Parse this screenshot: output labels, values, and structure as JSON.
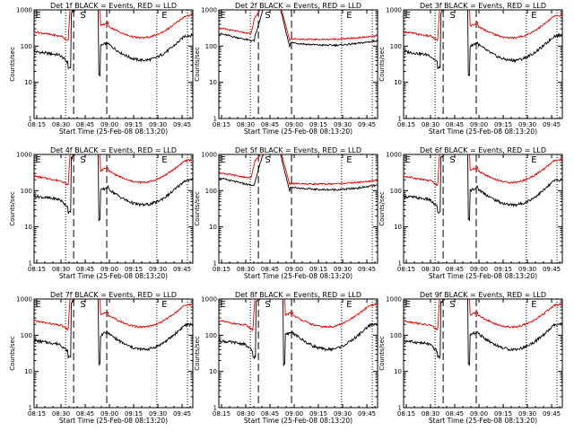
{
  "colors": {
    "events": "#000000",
    "lld": "#e00000",
    "axis": "#000000",
    "background": "#ffffff"
  },
  "chart_data": [
    {
      "type": "line",
      "title": "Det 1f BLACK = Events, RED = LLD",
      "xlabel": "Start Time (25-Feb-08 08:13:20)",
      "ylabel": "Counts/sec",
      "x_ticks": [
        "08:15",
        "08:30",
        "08:45",
        "09:00",
        "09:15",
        "09:30",
        "09:45"
      ],
      "y_ticks": [
        "1",
        "10",
        "100",
        "1000"
      ],
      "ylim": [
        1,
        1000
      ],
      "yscale": "log",
      "markers": [
        "E",
        "S",
        "E"
      ],
      "profile": "A"
    },
    {
      "type": "line",
      "title": "Det 2f BLACK = Events, RED = LLD",
      "xlabel": "Start Time (25-Feb-08 08:13:20)",
      "ylabel": "Counts/sec",
      "x_ticks": [
        "08:15",
        "08:30",
        "08:45",
        "09:00",
        "09:15",
        "09:30",
        "09:45"
      ],
      "y_ticks": [
        "1",
        "10",
        "100",
        "1000"
      ],
      "ylim": [
        1,
        1000
      ],
      "yscale": "log",
      "markers": [
        "E",
        "S",
        "E"
      ],
      "profile": "B"
    },
    {
      "type": "line",
      "title": "Det 3f BLACK = Events, RED = LLD",
      "xlabel": "Start Time (25-Feb-08 08:13:20)",
      "ylabel": "Counts/sec",
      "x_ticks": [
        "08:15",
        "08:30",
        "08:45",
        "09:00",
        "09:15",
        "09:30",
        "09:45"
      ],
      "y_ticks": [
        "1",
        "10",
        "100",
        "1000"
      ],
      "ylim": [
        1,
        1000
      ],
      "yscale": "log",
      "markers": [
        "E",
        "S",
        "E"
      ],
      "profile": "A"
    },
    {
      "type": "line",
      "title": "Det 4f BLACK = Events, RED = LLD",
      "xlabel": "Start Time (25-Feb-08 08:13:20)",
      "ylabel": "Counts/sec",
      "x_ticks": [
        "08:15",
        "08:30",
        "08:45",
        "09:00",
        "09:15",
        "09:30",
        "09:45"
      ],
      "y_ticks": [
        "1",
        "10",
        "100",
        "1000"
      ],
      "ylim": [
        1,
        1000
      ],
      "yscale": "log",
      "markers": [
        "E",
        "S",
        "E"
      ],
      "profile": "A"
    },
    {
      "type": "line",
      "title": "Det 5f BLACK = Events, RED = LLD",
      "xlabel": "Start Time (25-Feb-08 08:13:20)",
      "ylabel": "Counts/sec",
      "x_ticks": [
        "08:15",
        "08:30",
        "08:45",
        "09:00",
        "09:15",
        "09:30",
        "09:45"
      ],
      "y_ticks": [
        "1",
        "10",
        "100",
        "1000"
      ],
      "ylim": [
        1,
        1000
      ],
      "yscale": "log",
      "markers": [
        "E",
        "S",
        "E"
      ],
      "profile": "B"
    },
    {
      "type": "line",
      "title": "Det 6f BLACK = Events, RED = LLD",
      "xlabel": "Start Time (25-Feb-08 08:13:20)",
      "ylabel": "Counts/sec",
      "x_ticks": [
        "08:15",
        "08:30",
        "08:45",
        "09:00",
        "09:15",
        "09:30",
        "09:45"
      ],
      "y_ticks": [
        "1",
        "10",
        "100",
        "1000"
      ],
      "ylim": [
        1,
        1000
      ],
      "yscale": "log",
      "markers": [
        "E",
        "S",
        "E"
      ],
      "profile": "A"
    },
    {
      "type": "line",
      "title": "Det 7f BLACK = Events, RED = LLD",
      "xlabel": "Start Time (25-Feb-08 08:13:20)",
      "ylabel": "Counts/sec",
      "x_ticks": [
        "08:15",
        "08:30",
        "08:45",
        "09:00",
        "09:15",
        "09:30",
        "09:45"
      ],
      "y_ticks": [
        "1",
        "10",
        "100",
        "1000"
      ],
      "ylim": [
        1,
        1000
      ],
      "yscale": "log",
      "markers": [
        "E",
        "S",
        "E"
      ],
      "profile": "A"
    },
    {
      "type": "line",
      "title": "Det 8f BLACK = Events, RED = LLD",
      "xlabel": "Start Time (25-Feb-08 08:13:20)",
      "ylabel": "Counts/sec",
      "x_ticks": [
        "08:15",
        "08:30",
        "08:45",
        "09:00",
        "09:15",
        "09:30",
        "09:45"
      ],
      "y_ticks": [
        "1",
        "10",
        "100",
        "1000"
      ],
      "ylim": [
        1,
        1000
      ],
      "yscale": "log",
      "markers": [
        "E",
        "S",
        "E"
      ],
      "profile": "A"
    },
    {
      "type": "line",
      "title": "Det 9f BLACK = Events, RED = LLD",
      "xlabel": "Start Time (25-Feb-08 08:13:20)",
      "ylabel": "Counts/sec",
      "x_ticks": [
        "08:15",
        "08:30",
        "08:45",
        "09:00",
        "09:15",
        "09:30",
        "09:45"
      ],
      "y_ticks": [
        "1",
        "10",
        "100",
        "1000"
      ],
      "ylim": [
        1,
        1000
      ],
      "yscale": "log",
      "markers": [
        "E",
        "S",
        "E"
      ],
      "profile": "A"
    }
  ]
}
